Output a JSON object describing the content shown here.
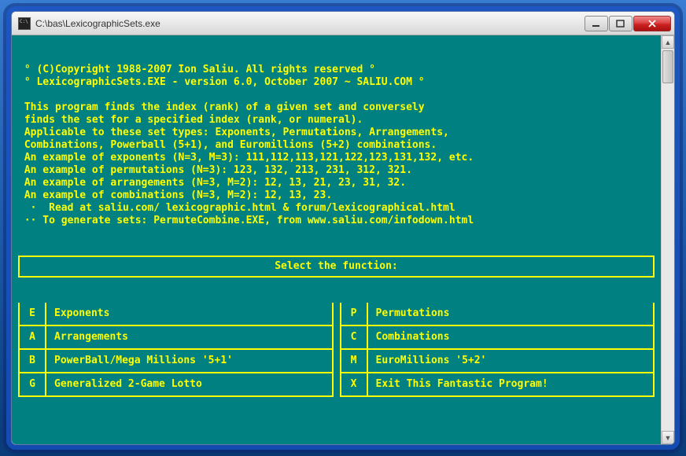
{
  "window": {
    "title": "C:\\bas\\LexicographicSets.exe"
  },
  "colors": {
    "console_bg": "#008080",
    "console_fg": "#ffff00",
    "titlebar_text": "#333333",
    "close_btn": "#c22"
  },
  "header_lines": [
    " ° (C)Copyright 1988-2007 Ion Saliu. All rights reserved °",
    " ° LexicographicSets.EXE - version 6.0, October 2007 ~ SALIU.COM °",
    "",
    " This program finds the index (rank) of a given set and conversely",
    " finds the set for a specified index (rank, or numeral).",
    " Applicable to these set types: Exponents, Permutations, Arrangements,",
    " Combinations, Powerball (5+1), and Euromillions (5+2) combinations.",
    " An example of exponents (N=3, M=3): 111,112,113,121,122,123,131,132, etc.",
    " An example of permutations (N=3): 123, 132, 213, 231, 312, 321.",
    " An example of arrangements (N=3, M=2): 12, 13, 21, 23, 31, 32.",
    " An example of combinations (N=3, M=2): 12, 13, 23.",
    "  ·  Read at saliu.com/ lexicographic.html & forum/lexicographical.html",
    " ·· To generate sets: PermuteCombine.EXE, from www.saliu.com/infodown.html"
  ],
  "menu": {
    "title": "Select the function:",
    "rows": [
      {
        "left_key": "E",
        "left_label": "Exponents",
        "right_key": "P",
        "right_label": "Permutations"
      },
      {
        "left_key": "A",
        "left_label": "Arrangements",
        "right_key": "C",
        "right_label": "Combinations"
      },
      {
        "left_key": "B",
        "left_label": "PowerBall/Mega Millions '5+1'",
        "right_key": "M",
        "right_label": "EuroMillions '5+2'"
      },
      {
        "left_key": "G",
        "left_label": "Generalized 2-Game Lotto",
        "right_key": "X",
        "right_label": "Exit This Fantastic Program!"
      }
    ]
  }
}
